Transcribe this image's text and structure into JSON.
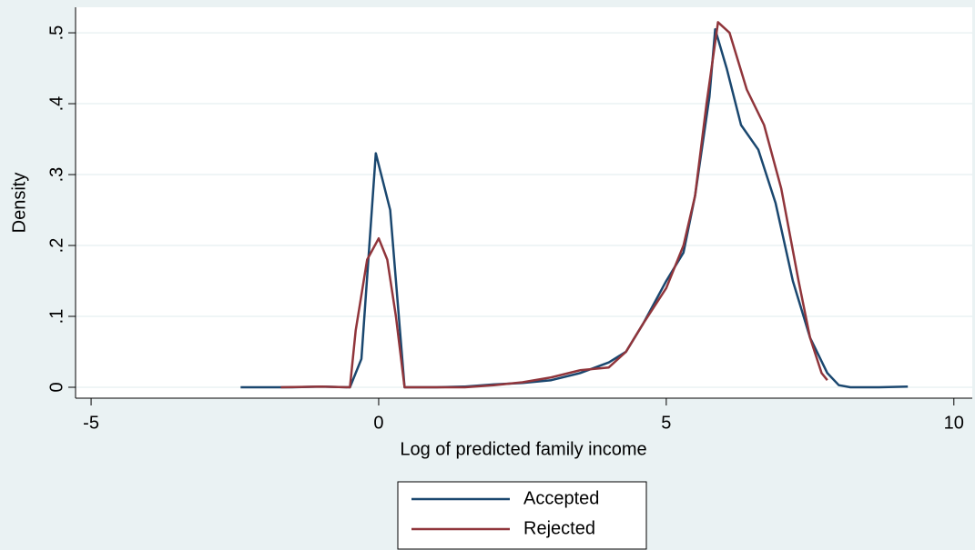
{
  "chart_data": {
    "type": "line",
    "xlabel": "Log of predicted family income",
    "ylabel": "Density",
    "xlim": [
      -5.27,
      10.32
    ],
    "ylim": [
      -0.0154,
      0.536
    ],
    "xticks": [
      -5,
      0,
      5,
      10
    ],
    "yticks": [
      0,
      {
        "value": 0.1,
        "label": ".1"
      },
      {
        "value": 0.2,
        "label": ".2"
      },
      {
        "value": 0.3,
        "label": ".3"
      },
      {
        "value": 0.4,
        "label": ".4"
      },
      {
        "value": 0.5,
        "label": ".5"
      }
    ],
    "grid": true,
    "legend": "bottom",
    "series": [
      {
        "name": "Accepted",
        "color": "#1a476f",
        "x": [
          -2.4,
          -2,
          -1.5,
          -1,
          -0.5,
          -0.3,
          -0.05,
          0.2,
          0.45,
          1,
          1.5,
          2,
          2.5,
          3,
          3.5,
          4,
          4.3,
          4.6,
          5,
          5.3,
          5.5,
          5.75,
          5.85,
          6.05,
          6.3,
          6.6,
          6.9,
          7.2,
          7.5,
          7.8,
          8.0,
          8.2,
          8.7,
          9.2
        ],
        "values": [
          0,
          0,
          0,
          0.001,
          0,
          0.04,
          0.33,
          0.25,
          0,
          0,
          0.001,
          0.004,
          0.006,
          0.01,
          0.02,
          0.035,
          0.05,
          0.09,
          0.15,
          0.19,
          0.27,
          0.41,
          0.505,
          0.45,
          0.37,
          0.335,
          0.26,
          0.15,
          0.07,
          0.02,
          0.003,
          0,
          0,
          0.001
        ]
      },
      {
        "name": "Rejected",
        "color": "#90353b",
        "x": [
          -1.7,
          -1,
          -0.5,
          -0.4,
          -0.2,
          0,
          0.15,
          0.3,
          0.45,
          1,
          1.5,
          2,
          2.5,
          3,
          3.5,
          4,
          4.3,
          4.6,
          5,
          5.3,
          5.5,
          5.7,
          5.9,
          6.1,
          6.4,
          6.7,
          7,
          7.3,
          7.5,
          7.7,
          7.8
        ],
        "values": [
          0,
          0.001,
          0,
          0.08,
          0.18,
          0.21,
          0.18,
          0.1,
          0,
          0,
          0,
          0.003,
          0.007,
          0.014,
          0.024,
          0.028,
          0.05,
          0.09,
          0.14,
          0.2,
          0.27,
          0.4,
          0.515,
          0.5,
          0.42,
          0.37,
          0.28,
          0.15,
          0.07,
          0.02,
          0.01
        ]
      }
    ]
  }
}
